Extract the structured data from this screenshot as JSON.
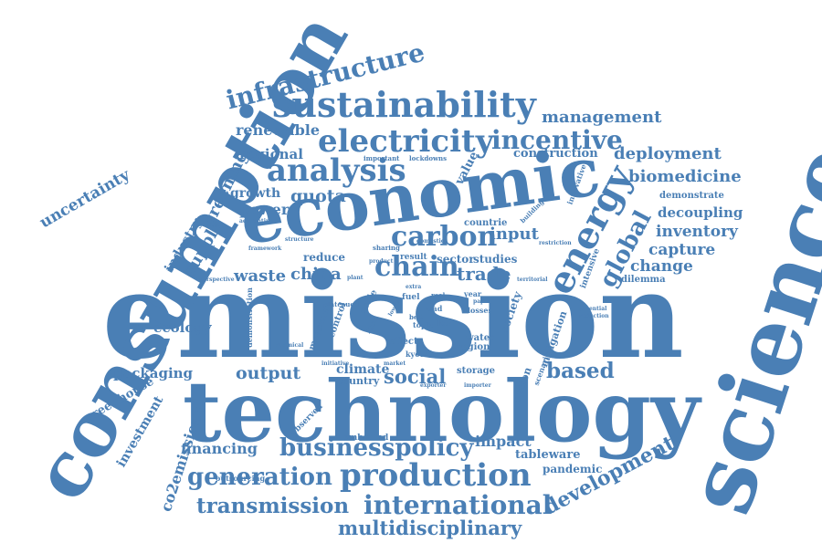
{
  "cloud": {
    "color": "#4a7fb5",
    "words": [
      "emission",
      "technology",
      "science",
      "consumption",
      "economic",
      "sustainability",
      "electricity",
      "analysis",
      "production",
      "infrastructure",
      "international",
      "multidisciplinary",
      "generation",
      "transmission",
      "energy",
      "carbon",
      "chain",
      "businesspolicy",
      "incentive",
      "management",
      "renewable",
      "global",
      "development",
      "biomedicine",
      "deployment",
      "uncertainty",
      "supply",
      "greening",
      "industry",
      "growth",
      "power",
      "quota",
      "regional",
      "waste",
      "china",
      "trade",
      "input",
      "construction",
      "value",
      "inventory",
      "decoupling",
      "capture",
      "change",
      "based",
      "social",
      "output",
      "ecology",
      "packaging",
      "greenhouse",
      "investment",
      "co2emissions",
      "financing",
      "impact",
      "tableware",
      "pandemic",
      "climate",
      "country",
      "sector",
      "studies",
      "reduce",
      "result",
      "mitigation",
      "society",
      "dilemma",
      "intensive",
      "demonstrate",
      "embodied",
      "observed",
      "storage",
      "region",
      "water",
      "effect",
      "kyoto",
      "option",
      "scenario",
      "measure",
      "control",
      "plateaued",
      "outsourcing",
      "demonstration",
      "chemical",
      "accounting",
      "framework",
      "structure",
      "perspective",
      "important",
      "lockdowns",
      "building",
      "countrie",
      "sharing",
      "flow",
      "losses",
      "topic",
      "year",
      "road",
      "belt",
      "real",
      "innovative",
      "restriction",
      "potential",
      "reduction",
      "territorial",
      "exporter",
      "importer",
      "paper",
      "fuel",
      "extra",
      "lowest",
      "scale",
      "lcoe",
      "domestic",
      "product",
      "plant",
      "initiative",
      "market"
    ]
  }
}
